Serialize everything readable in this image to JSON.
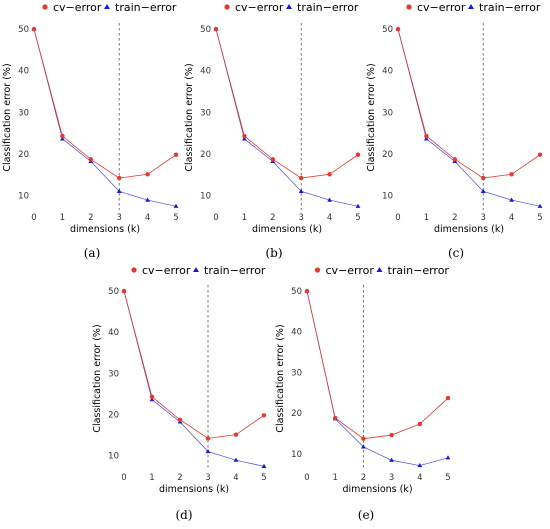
{
  "legend": {
    "cv_label": "cv−error",
    "train_label": "train−error"
  },
  "colors": {
    "cv": "#e8372c",
    "train": "#1a1ad6",
    "vline": "#555555",
    "axis_text": "#333333"
  },
  "chart_data": [
    {
      "type": "line",
      "caption": "(a)",
      "x": [
        0,
        1,
        2,
        3,
        4,
        5
      ],
      "xlabel": "dimensions (k)",
      "ylabel": "Classification error (%)",
      "xlim": [
        0,
        5
      ],
      "ylim": [
        7,
        50.5
      ],
      "xticks": [
        "0",
        "1",
        "2",
        "3",
        "4",
        "5"
      ],
      "yticks": [
        10,
        20,
        30,
        40,
        50
      ],
      "vline_x": 3,
      "legend_position": "top",
      "grid": false,
      "series": [
        {
          "name": "cv−error",
          "values": [
            50,
            24.3,
            18.7,
            14.2,
            15.1,
            19.8
          ]
        },
        {
          "name": "train−error",
          "values": [
            50,
            23.6,
            18.2,
            11.0,
            8.9,
            7.4
          ]
        }
      ]
    },
    {
      "type": "line",
      "caption": "(b)",
      "x": [
        0,
        1,
        2,
        3,
        4,
        5
      ],
      "xlabel": "dimensions (k)",
      "ylabel": "Classification error (%)",
      "xlim": [
        0,
        5
      ],
      "ylim": [
        7,
        50.5
      ],
      "xticks": [
        "0",
        "1",
        "2",
        "3",
        "4",
        "5"
      ],
      "yticks": [
        10,
        20,
        30,
        40,
        50
      ],
      "vline_x": 3,
      "legend_position": "top",
      "grid": false,
      "series": [
        {
          "name": "cv−error",
          "values": [
            50,
            24.3,
            18.7,
            14.2,
            15.1,
            19.8
          ]
        },
        {
          "name": "train−error",
          "values": [
            50,
            23.6,
            18.2,
            11.0,
            8.9,
            7.4
          ]
        }
      ]
    },
    {
      "type": "line",
      "caption": "(c)",
      "x": [
        0,
        1,
        2,
        3,
        4,
        5
      ],
      "xlabel": "dimensions (k)",
      "ylabel": "Classification error (%)",
      "xlim": [
        0,
        5
      ],
      "ylim": [
        7,
        50.5
      ],
      "xticks": [
        "0",
        "1",
        "2",
        "3",
        "4",
        "5"
      ],
      "yticks": [
        10,
        20,
        30,
        40,
        50
      ],
      "vline_x": 3,
      "legend_position": "top",
      "grid": false,
      "series": [
        {
          "name": "cv−error",
          "values": [
            50,
            24.3,
            18.7,
            14.2,
            15.1,
            19.8
          ]
        },
        {
          "name": "train−error",
          "values": [
            50,
            23.6,
            18.2,
            11.0,
            8.9,
            7.4
          ]
        }
      ]
    },
    {
      "type": "line",
      "caption": "(d)",
      "x": [
        0,
        1,
        2,
        3,
        4,
        5
      ],
      "xlabel": "dimensions (k)",
      "ylabel": "Classification error (%)",
      "xlim": [
        0,
        5
      ],
      "ylim": [
        7,
        50.5
      ],
      "xticks": [
        "0",
        "1",
        "2",
        "3",
        "4",
        "5"
      ],
      "yticks": [
        10,
        20,
        30,
        40,
        50
      ],
      "vline_x": 3,
      "legend_position": "top",
      "grid": false,
      "series": [
        {
          "name": "cv−error",
          "values": [
            50,
            24.3,
            18.7,
            14.2,
            15.1,
            19.8
          ]
        },
        {
          "name": "train−error",
          "values": [
            50,
            23.6,
            18.2,
            11.0,
            8.9,
            7.4
          ]
        }
      ]
    },
    {
      "type": "line",
      "caption": "(e)",
      "x": [
        0,
        1,
        2,
        3,
        4,
        5
      ],
      "xlabel": "dimensions (k)",
      "ylabel": "Classification error (%)",
      "xlim": [
        0,
        5
      ],
      "ylim": [
        6.5,
        50.5
      ],
      "xticks": [
        "0",
        "1",
        "2",
        "3",
        "4",
        "5"
      ],
      "yticks": [
        10,
        20,
        30,
        40,
        50
      ],
      "vline_x": 2,
      "legend_position": "top",
      "grid": false,
      "series": [
        {
          "name": "cv−error",
          "values": [
            50,
            18.8,
            13.7,
            14.6,
            17.3,
            23.7
          ]
        },
        {
          "name": "train−error",
          "values": [
            50,
            18.6,
            11.7,
            8.4,
            7.1,
            9.0
          ]
        }
      ]
    }
  ]
}
